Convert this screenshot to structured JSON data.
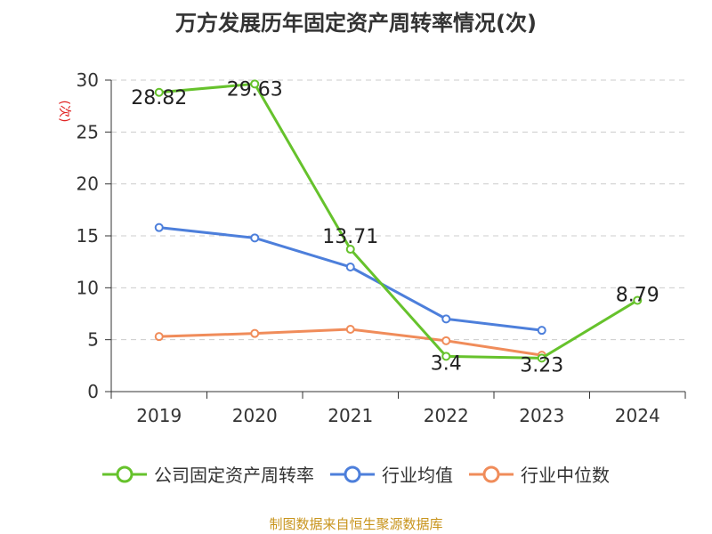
{
  "title": "万方发展历年固定资产周转率情况(次)",
  "source": "制图数据来自恒生聚源数据库",
  "colors": {
    "company": "#66c22c",
    "industry_avg": "#4d7fdb",
    "industry_median": "#f08c5a",
    "axis": "#333333",
    "grid": "#cccccc",
    "ylabel": "#e02020"
  },
  "chart_data": {
    "type": "line",
    "title": "万方发展历年固定资产周转率情况(次)",
    "ylabel": "(次)",
    "xlabel": "",
    "categories": [
      "2019",
      "2020",
      "2021",
      "2022",
      "2023",
      "2024"
    ],
    "ylim": [
      0,
      30
    ],
    "yticks": [
      0,
      5,
      10,
      15,
      20,
      25,
      30
    ],
    "grid": true,
    "legend_position": "bottom",
    "series": [
      {
        "name": "公司固定资产周转率",
        "key": "company",
        "values": [
          28.82,
          29.63,
          13.71,
          3.4,
          3.23,
          8.79
        ],
        "labels": [
          "28.82",
          "29.63",
          "13.71",
          "3.4",
          "3.23",
          "8.79"
        ]
      },
      {
        "name": "行业均值",
        "key": "industry_avg",
        "values": [
          15.8,
          14.8,
          12.0,
          7.0,
          5.9,
          null
        ]
      },
      {
        "name": "行业中位数",
        "key": "industry_median",
        "values": [
          5.3,
          5.6,
          6.0,
          4.9,
          3.5,
          null
        ]
      }
    ]
  }
}
